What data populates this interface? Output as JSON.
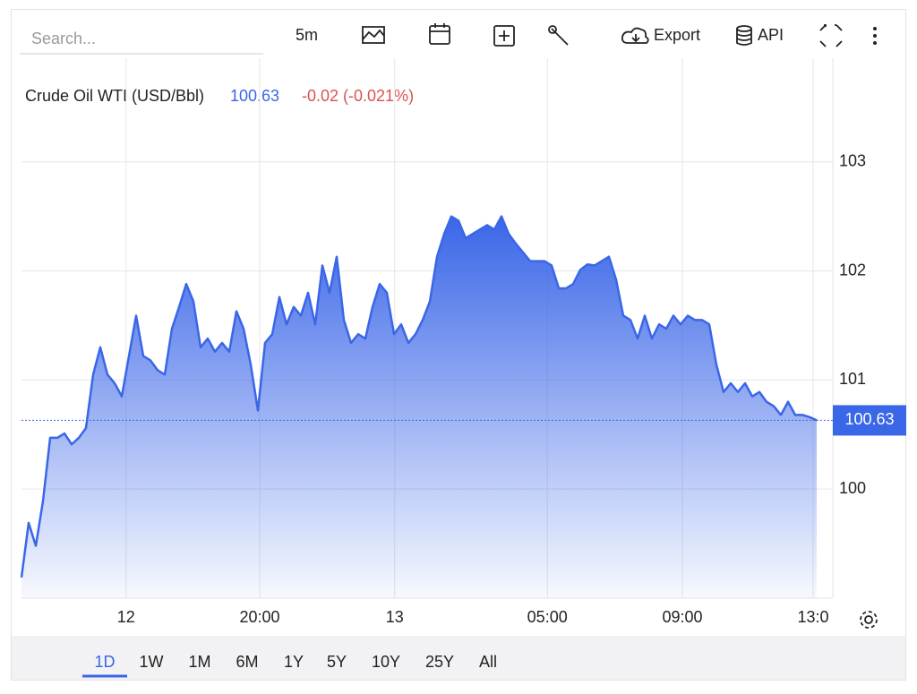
{
  "toolbar": {
    "search_placeholder": "Search...",
    "interval": "5m",
    "export": "Export",
    "api": "API"
  },
  "header": {
    "name": "Crude Oil WTI (USD/Bbl)",
    "change": "-0.02 (-0.021%)"
  },
  "ranges": [
    "1D",
    "1W",
    "1M",
    "6M",
    "1Y",
    "5Y",
    "10Y",
    "25Y",
    "All"
  ],
  "chart_data": {
    "type": "area",
    "color": "#3a66e8",
    "current_value": 100.63,
    "values": [
      99.19,
      99.69,
      99.48,
      99.89,
      100.47,
      100.47,
      100.51,
      100.41,
      100.47,
      100.56,
      101.05,
      101.3,
      101.05,
      100.97,
      100.85,
      101.22,
      101.59,
      101.22,
      101.18,
      101.09,
      101.05,
      101.47,
      101.67,
      101.88,
      101.72,
      101.3,
      101.38,
      101.26,
      101.34,
      101.26,
      101.63,
      101.47,
      101.14,
      100.72,
      101.34,
      101.42,
      101.76,
      101.51,
      101.67,
      101.59,
      101.8,
      101.51,
      102.05,
      101.8,
      102.13,
      101.55,
      101.34,
      101.42,
      101.38,
      101.67,
      101.88,
      101.8,
      101.42,
      101.51,
      101.34,
      101.42,
      101.55,
      101.72,
      102.13,
      102.34,
      102.5,
      102.46,
      102.3,
      102.34,
      102.38,
      102.42,
      102.38,
      102.5,
      102.34,
      102.25,
      102.17,
      102.09,
      102.09,
      102.09,
      102.05,
      101.84,
      101.84,
      101.88,
      102.01,
      102.06,
      102.05,
      102.09,
      102.13,
      101.92,
      101.59,
      101.55,
      101.38,
      101.59,
      101.38,
      101.51,
      101.47,
      101.59,
      101.51,
      101.59,
      101.55,
      101.55,
      101.51,
      101.14,
      100.89,
      100.97,
      100.89,
      100.97,
      100.85,
      100.89,
      100.8,
      100.76,
      100.68,
      100.8,
      100.68,
      100.68,
      100.66,
      100.63
    ],
    "xlim": [
      0,
      111
    ],
    "xticks": [
      {
        "value": 14.6,
        "label": "12"
      },
      {
        "value": 33.25,
        "label": "20:00"
      },
      {
        "value": 52.1,
        "label": "13"
      },
      {
        "value": 73.4,
        "label": "05:00"
      },
      {
        "value": 92.25,
        "label": "09:00"
      },
      {
        "value": 110.5,
        "label": "13:0"
      }
    ],
    "ylim": [
      99,
      103.95
    ],
    "yticks": [
      100,
      101,
      102,
      103
    ],
    "grid": true
  }
}
